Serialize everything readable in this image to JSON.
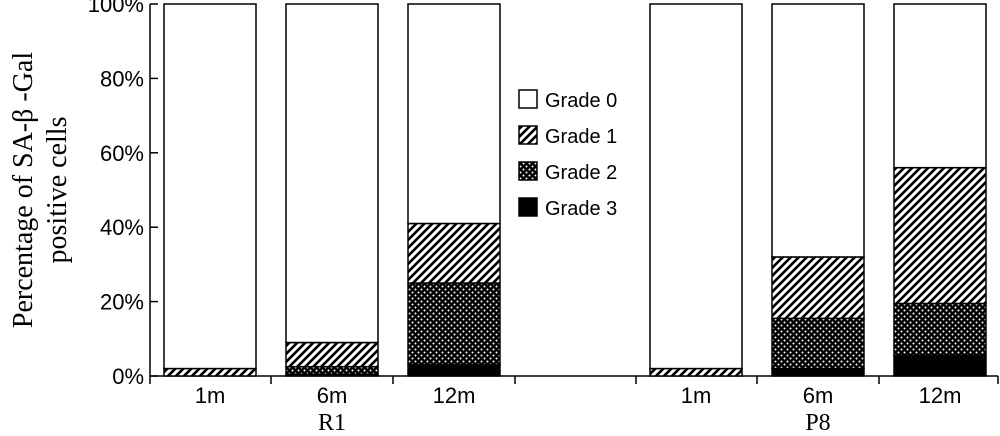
{
  "chart_data": {
    "type": "bar",
    "stacked": true,
    "ylabel_lines": [
      "Percentage of SA-β  -Gal",
      "positive cells"
    ],
    "ylim": [
      0,
      100
    ],
    "yticks": [
      "0%",
      "20%",
      "40%",
      "60%",
      "80%",
      "100%"
    ],
    "categories": [
      "1m",
      "6m",
      "12m",
      "1m",
      "6m",
      "12m"
    ],
    "groups": [
      {
        "label": "R1",
        "categories": [
          "1m",
          "6m",
          "12m"
        ]
      },
      {
        "label": "P8",
        "categories": [
          "1m",
          "6m",
          "12m"
        ]
      }
    ],
    "series": [
      {
        "name": "Grade 3",
        "values": [
          0,
          0.5,
          3,
          0,
          2,
          5.5
        ]
      },
      {
        "name": "Grade 2",
        "values": [
          0,
          2,
          22,
          0,
          13.5,
          14
        ]
      },
      {
        "name": "Grade 1",
        "values": [
          2,
          6.5,
          16,
          2,
          16.5,
          36.5
        ]
      },
      {
        "name": "Grade 0",
        "values": [
          98,
          91,
          59,
          98,
          68,
          44
        ]
      }
    ],
    "legend": {
      "position": "center",
      "entries": [
        "Grade 0",
        "Grade 1",
        "Grade 2",
        "Grade 3"
      ]
    },
    "grid": false
  }
}
